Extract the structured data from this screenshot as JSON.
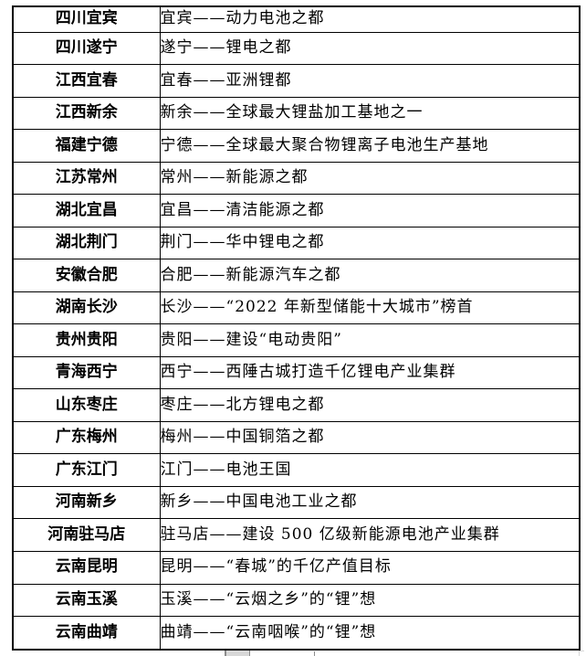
{
  "colors": {
    "border": "#000000",
    "text": "#000000",
    "bg": "#ffffff",
    "artifact_light": "#d8d8d8",
    "artifact_dark": "#8c8c8c"
  },
  "table": {
    "name": "china-lithium-battery-city-nicknames",
    "rows": [
      {
        "region": "四川宜宾",
        "description": "宜宾——动力电池之都"
      },
      {
        "region": "四川遂宁",
        "description": "遂宁——锂电之都"
      },
      {
        "region": "江西宜春",
        "description": "宜春——亚洲锂都"
      },
      {
        "region": "江西新余",
        "description": "新余——全球最大锂盐加工基地之一"
      },
      {
        "region": "福建宁德",
        "description": "宁德——全球最大聚合物锂离子电池生产基地"
      },
      {
        "region": "江苏常州",
        "description": "常州——新能源之都"
      },
      {
        "region": "湖北宜昌",
        "description": "宜昌——清洁能源之都"
      },
      {
        "region": "湖北荆门",
        "description": "荆门——华中锂电之都"
      },
      {
        "region": "安徽合肥",
        "description": "合肥——新能源汽车之都"
      },
      {
        "region": "湖南长沙",
        "description": "长沙——“2022 年新型储能十大城市”榜首"
      },
      {
        "region": "贵州贵阳",
        "description": "贵阳——建设“电动贵阳”"
      },
      {
        "region": "青海西宁",
        "description": "西宁——西陲古城打造千亿锂电产业集群"
      },
      {
        "region": "山东枣庄",
        "description": "枣庄——北方锂电之都"
      },
      {
        "region": "广东梅州",
        "description": "梅州——中国铜箔之都"
      },
      {
        "region": "广东江门",
        "description": "江门——电池王国"
      },
      {
        "region": "河南新乡",
        "description": "新乡——中国电池工业之都"
      },
      {
        "region": "河南驻马店",
        "description": "驻马店——建设 500 亿级新能源电池产业集群"
      },
      {
        "region": "云南昆明",
        "description": "昆明——“春城”的千亿产值目标"
      },
      {
        "region": "云南玉溪",
        "description": "玉溪——“云烟之乡”的“锂”想"
      },
      {
        "region": "云南曲靖",
        "description": "曲靖——“云南咽喉”的“锂”想"
      }
    ]
  }
}
